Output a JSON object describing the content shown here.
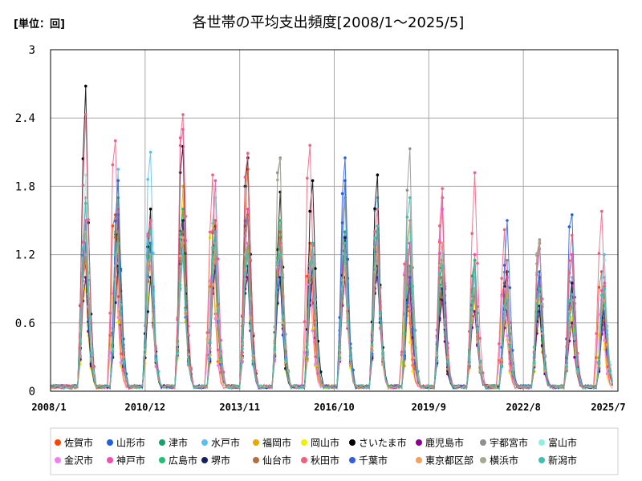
{
  "chart_data": {
    "type": "line",
    "title": "各世帯の平均支出頻度[2008/1～2025/5]",
    "unit_label": "[単位：回]",
    "ylim": [
      0,
      3
    ],
    "yticks": [
      "0",
      "0.6",
      "1.2",
      "1.8",
      "2.4",
      "3"
    ],
    "xticks": [
      "2008/1",
      "2010/12",
      "2013/11",
      "2016/10",
      "2019/9",
      "2022/8",
      "2025/7"
    ],
    "grid": true,
    "legend_position": "bottom",
    "peak_months": [
      "2009/2",
      "2010/2",
      "2011/2",
      "2012/2",
      "2013/2",
      "2014/2",
      "2015/2",
      "2016/2",
      "2017/2",
      "2018/2",
      "2019/2",
      "2020/2",
      "2021/2",
      "2022/2",
      "2023/2",
      "2024/2",
      "2025/2"
    ],
    "series": [
      {
        "name": "佐賀市",
        "color": "#ff4500",
        "peaks": [
          1.1,
          1.55,
          1.25,
          1.6,
          1.1,
          1.95,
          1.35,
          1.3,
          1.1,
          1.45,
          1.2,
          1.6,
          0.9,
          0.95,
          0.95,
          0.75,
          1.05
        ]
      },
      {
        "name": "山形市",
        "color": "#1f5fe0",
        "peaks": [
          1.45,
          1.5,
          1.3,
          1.4,
          1.2,
          1.6,
          1.0,
          1.3,
          1.85,
          1.4,
          1.0,
          1.1,
          0.85,
          0.75,
          1.05,
          1.55,
          0.65
        ]
      },
      {
        "name": "津市",
        "color": "#1aa06a",
        "peaks": [
          1.3,
          1.7,
          1.5,
          1.2,
          1.35,
          1.3,
          1.2,
          1.1,
          1.4,
          1.3,
          1.05,
          1.15,
          1.15,
          1.0,
          1.0,
          0.85,
          0.85
        ]
      },
      {
        "name": "水戸市",
        "color": "#5bc0f0",
        "peaks": [
          1.5,
          1.95,
          2.1,
          1.3,
          1.7,
          1.3,
          1.3,
          1.2,
          1.7,
          1.7,
          1.1,
          0.9,
          0.9,
          0.85,
          1.25,
          1.0,
          1.2
        ]
      },
      {
        "name": "福岡市",
        "color": "#e8a800",
        "peaks": [
          1.0,
          1.3,
          1.1,
          1.8,
          1.0,
          1.3,
          1.1,
          1.2,
          1.0,
          1.1,
          0.9,
          0.9,
          0.8,
          0.75,
          0.7,
          0.65,
          0.7
        ]
      },
      {
        "name": "岡山市",
        "color": "#f0f000",
        "peaks": [
          0.9,
          1.1,
          1.0,
          1.2,
          1.45,
          1.1,
          1.0,
          1.0,
          1.05,
          1.2,
          0.9,
          0.85,
          0.8,
          0.8,
          0.8,
          0.65,
          0.6
        ]
      },
      {
        "name": "さいたま市",
        "color": "#000000",
        "peaks": [
          2.68,
          1.55,
          1.6,
          2.15,
          1.45,
          2.05,
          1.75,
          1.85,
          1.35,
          1.9,
          1.3,
          1.0,
          0.85,
          1.05,
          0.95,
          0.95,
          0.8
        ]
      },
      {
        "name": "鹿児島市",
        "color": "#8b008b",
        "peaks": [
          1.0,
          1.2,
          1.3,
          1.5,
          1.1,
          1.0,
          1.0,
          1.0,
          1.0,
          1.0,
          0.9,
          0.8,
          0.7,
          0.7,
          0.7,
          0.6,
          0.6
        ]
      },
      {
        "name": "宇都宮市",
        "color": "#909090",
        "peaks": [
          1.7,
          1.4,
          1.3,
          1.4,
          1.4,
          1.5,
          2.05,
          1.2,
          1.7,
          1.4,
          2.13,
          1.2,
          1.0,
          1.15,
          1.33,
          1.2,
          1.0
        ]
      },
      {
        "name": "富山市",
        "color": "#90f0e0",
        "peaks": [
          1.9,
          1.3,
          1.2,
          1.3,
          1.7,
          1.2,
          1.2,
          1.3,
          1.1,
          1.3,
          1.4,
          1.2,
          1.0,
          0.95,
          0.9,
          0.8,
          1.15
        ]
      },
      {
        "name": "金沢市",
        "color": "#f080f0",
        "peaks": [
          1.2,
          1.1,
          1.1,
          1.2,
          1.1,
          1.1,
          1.1,
          1.1,
          1.1,
          1.1,
          1.3,
          1.6,
          1.0,
          0.9,
          0.95,
          0.85,
          0.8
        ]
      },
      {
        "name": "神戸市",
        "color": "#f050b0",
        "peaks": [
          1.5,
          1.3,
          1.5,
          2.3,
          1.85,
          1.6,
          1.3,
          1.3,
          1.3,
          1.3,
          1.3,
          1.7,
          1.2,
          1.0,
          1.3,
          1.2,
          0.95
        ]
      },
      {
        "name": "広島市",
        "color": "#20c070",
        "peaks": [
          1.2,
          1.4,
          1.3,
          1.6,
          1.3,
          1.3,
          1.5,
          1.1,
          1.2,
          1.2,
          1.1,
          1.1,
          1.15,
          0.9,
          0.9,
          0.9,
          0.8
        ]
      },
      {
        "name": "堺市",
        "color": "#102060",
        "peaks": [
          1.2,
          1.1,
          1.0,
          1.5,
          1.1,
          1.1,
          1.0,
          1.1,
          1.35,
          1.1,
          1.0,
          0.9,
          0.9,
          0.8,
          0.75,
          0.95,
          0.7
        ]
      },
      {
        "name": "仙台市",
        "color": "#b07040",
        "peaks": [
          1.3,
          1.6,
          1.2,
          1.4,
          1.5,
          1.55,
          1.4,
          1.0,
          1.3,
          1.2,
          1.0,
          1.0,
          0.85,
          0.9,
          0.9,
          0.75,
          0.9
        ]
      },
      {
        "name": "秋田市",
        "color": "#f06080",
        "peaks": [
          2.43,
          2.2,
          1.5,
          2.43,
          1.9,
          2.09,
          1.3,
          2.16,
          1.2,
          1.6,
          1.2,
          1.78,
          1.92,
          1.42,
          1.3,
          1.37,
          1.58
        ]
      },
      {
        "name": "千葉市",
        "color": "#3060e0",
        "peaks": [
          1.3,
          1.85,
          1.3,
          1.3,
          1.1,
          1.2,
          1.2,
          1.2,
          2.05,
          1.2,
          1.0,
          1.3,
          0.9,
          1.5,
          1.0,
          0.8,
          0.7
        ]
      },
      {
        "name": "東京都区部",
        "color": "#f0a060",
        "peaks": [
          1.4,
          1.3,
          1.2,
          1.35,
          1.3,
          1.2,
          1.2,
          1.1,
          1.1,
          1.2,
          1.5,
          1.3,
          0.9,
          0.9,
          0.85,
          0.8,
          0.8
        ]
      },
      {
        "name": "横浜市",
        "color": "#a8a890",
        "peaks": [
          1.2,
          1.3,
          1.2,
          1.3,
          1.3,
          1.3,
          2.04,
          1.2,
          1.2,
          1.3,
          1.5,
          1.1,
          0.9,
          0.9,
          1.32,
          0.8,
          0.9
        ]
      },
      {
        "name": "新潟市",
        "color": "#40c0b0",
        "peaks": [
          1.65,
          1.3,
          1.4,
          1.2,
          1.4,
          1.2,
          1.2,
          1.3,
          1.3,
          1.45,
          1.7,
          1.1,
          1.1,
          0.8,
          0.9,
          0.85,
          0.9
        ]
      }
    ]
  }
}
